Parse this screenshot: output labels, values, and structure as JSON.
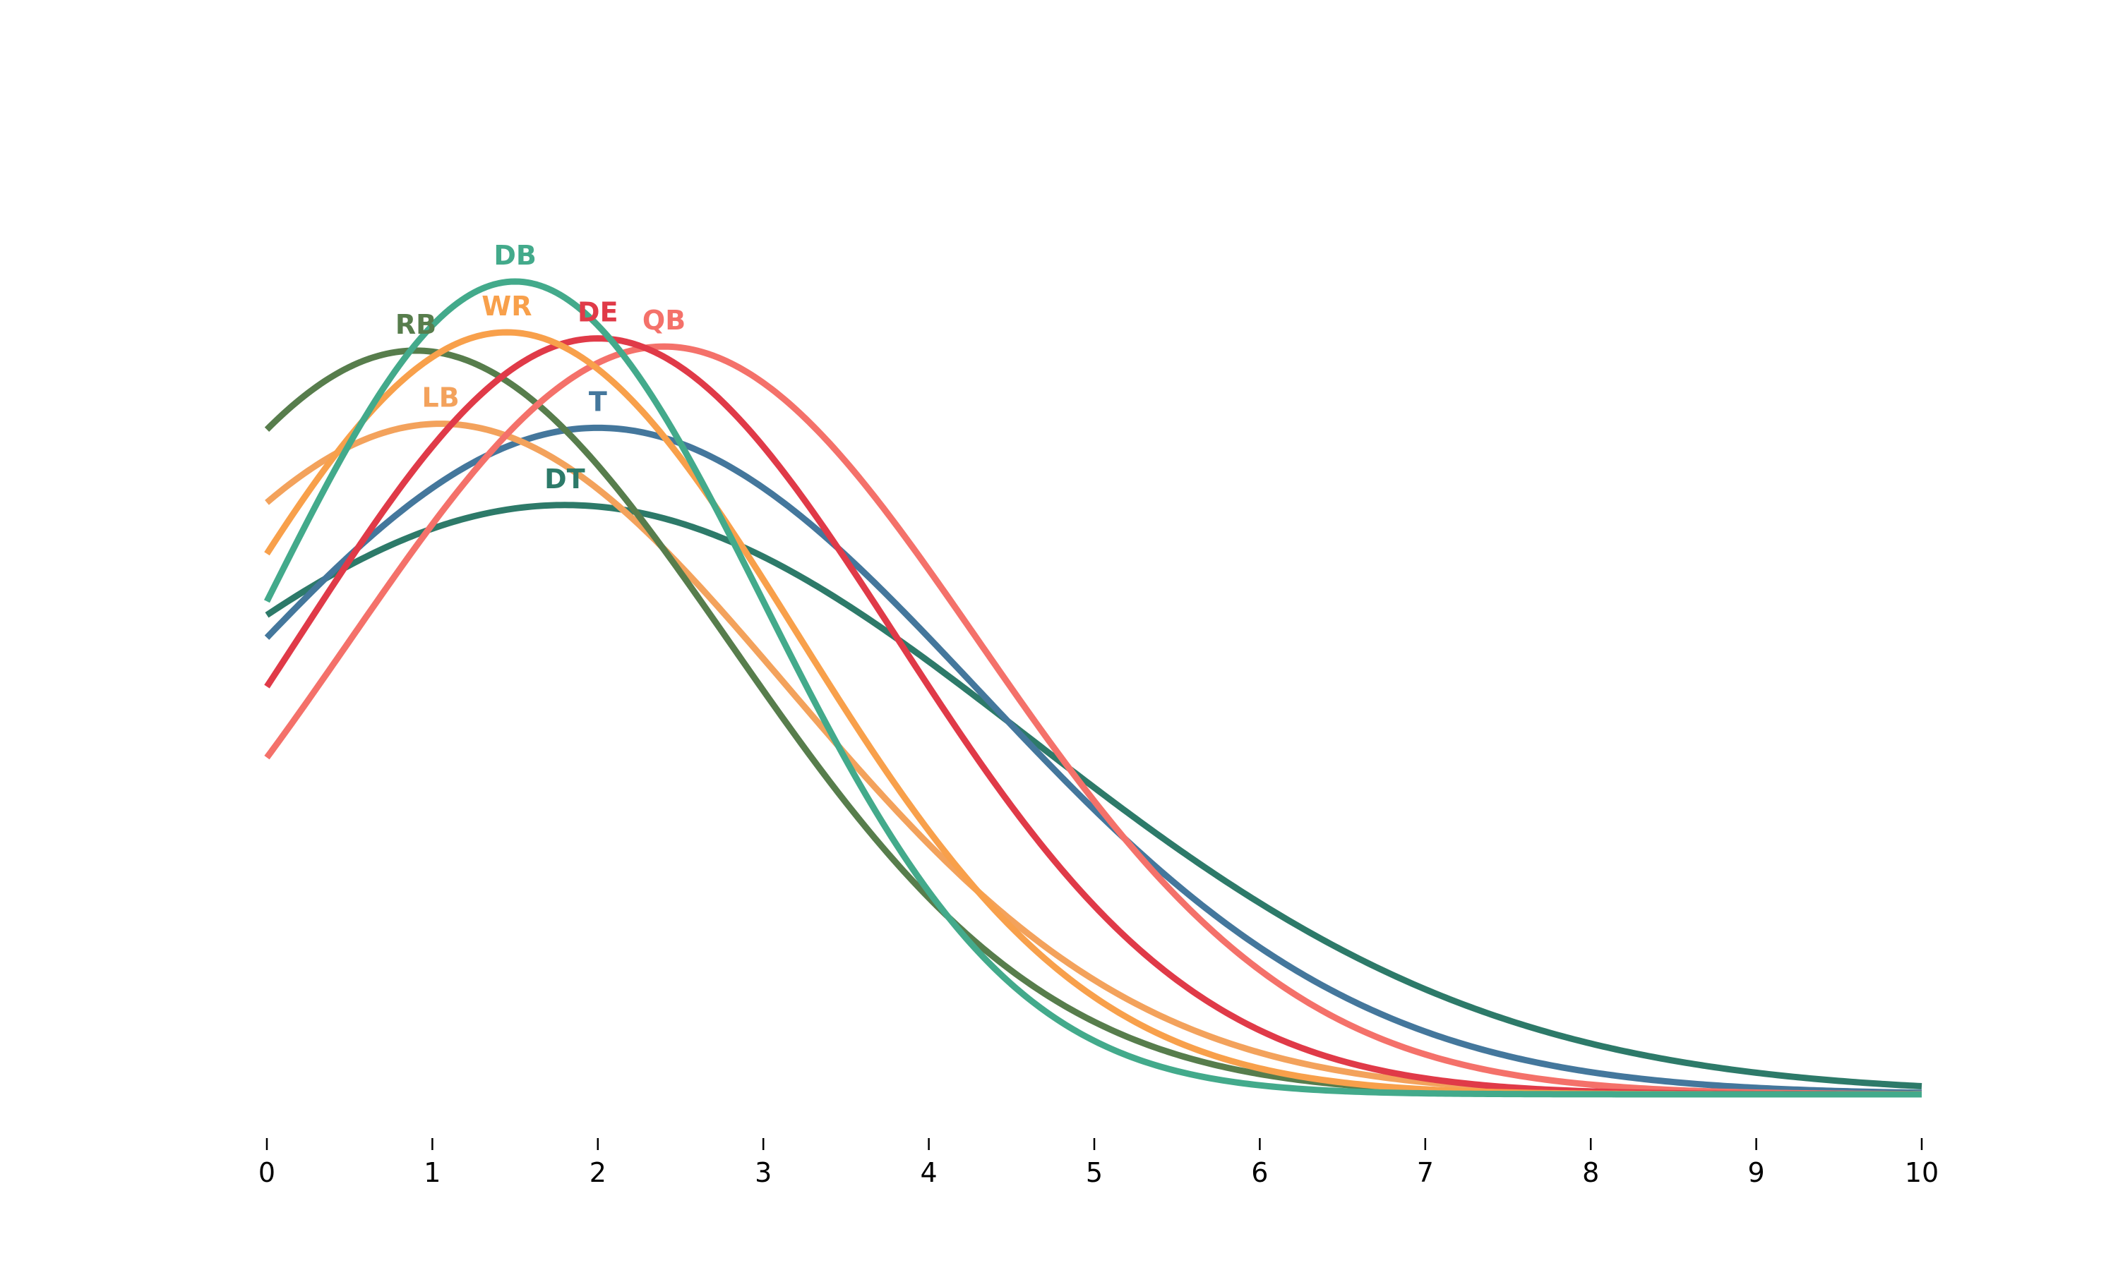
{
  "chart_data": {
    "type": "line",
    "title": "",
    "xlabel": "",
    "ylabel": "",
    "xlim": [
      0,
      10
    ],
    "ylim": [
      0,
      0.45
    ],
    "x_ticks": [
      "0",
      "1",
      "2",
      "3",
      "4",
      "5",
      "6",
      "7",
      "8",
      "9",
      "10"
    ],
    "grid": false,
    "legend": "inline labels at curve peaks",
    "series": [
      {
        "name": "DB",
        "color": "#43aa8b",
        "mean": 1.5,
        "sd": 1.5,
        "peak": 0.4
      },
      {
        "name": "WR",
        "color": "#f8a04b",
        "mean": 1.45,
        "sd": 1.75,
        "peak": 0.375
      },
      {
        "name": "DE",
        "color": "#e03a48",
        "mean": 2.0,
        "sd": 1.8,
        "peak": 0.372
      },
      {
        "name": "QB",
        "color": "#f4716a",
        "mean": 2.4,
        "sd": 1.9,
        "peak": 0.368
      },
      {
        "name": "RB",
        "color": "#577d4c",
        "mean": 0.9,
        "sd": 1.9,
        "peak": 0.366
      },
      {
        "name": "LB",
        "color": "#f3a25c",
        "mean": 1.05,
        "sd": 2.1,
        "peak": 0.33
      },
      {
        "name": "T",
        "color": "#44779c",
        "mean": 2.0,
        "sd": 2.3,
        "peak": 0.328
      },
      {
        "name": "DT",
        "color": "#2d7a69",
        "mean": 1.8,
        "sd": 2.8,
        "peak": 0.29
      }
    ]
  }
}
